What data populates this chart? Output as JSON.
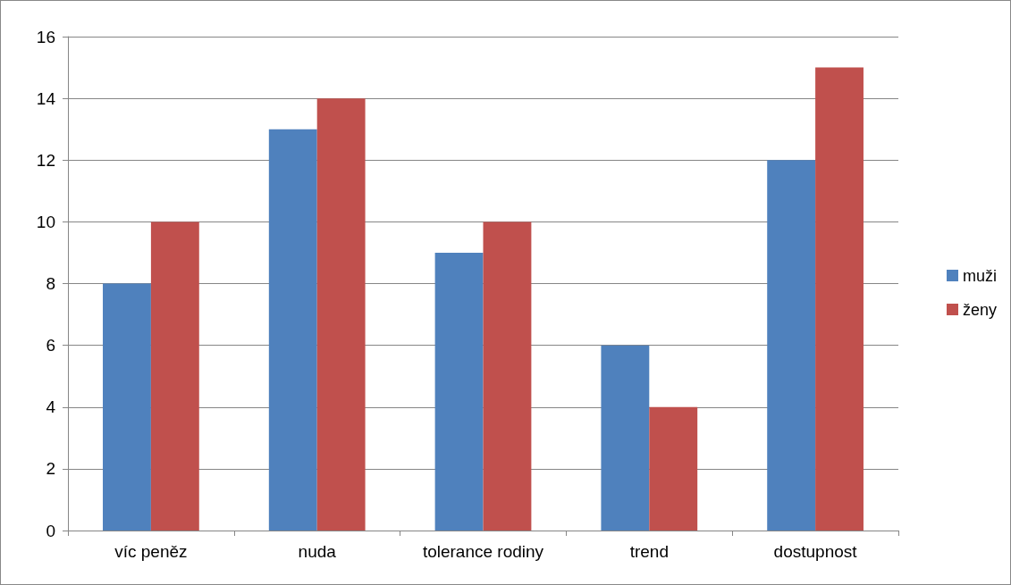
{
  "chart_data": {
    "type": "bar",
    "categories": [
      "víc peněz",
      "nuda",
      "tolerance rodiny",
      "trend",
      "dostupnost"
    ],
    "series": [
      {
        "name": "muži",
        "color": "#4f81bd",
        "values": [
          8,
          13,
          9,
          6,
          12
        ]
      },
      {
        "name": "ženy",
        "color": "#c0504d",
        "values": [
          10,
          14,
          10,
          4,
          15
        ]
      }
    ],
    "ylim": [
      0,
      16
    ],
    "yticks": [
      0,
      2,
      4,
      6,
      8,
      10,
      12,
      14,
      16
    ],
    "grid": "y",
    "legend": "right"
  }
}
